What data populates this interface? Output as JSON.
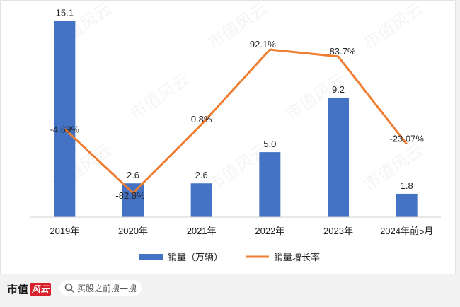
{
  "chart_data": {
    "type": "bar",
    "categories": [
      "2019年",
      "2020年",
      "2021年",
      "2022年",
      "2023年",
      "2024年前5月"
    ],
    "series": [
      {
        "name": "销量（万辆）",
        "type": "bar",
        "values": [
          15.1,
          2.6,
          2.6,
          5.0,
          9.2,
          1.8
        ],
        "labels": [
          "15.1",
          "2.6",
          "2.6",
          "5.0",
          "9.2",
          "1.8"
        ],
        "color": "#4472c4"
      },
      {
        "name": "销量增长率",
        "type": "line",
        "values": [
          -4.69,
          -82.8,
          0.8,
          92.1,
          83.7,
          -23.07
        ],
        "labels": [
          "-4.69%",
          "-82.8%",
          "0.8%",
          "92.1%",
          "83.7%",
          "-23.07%"
        ],
        "color": "#ed7d31"
      }
    ],
    "ylim": [
      0,
      16
    ],
    "y2lim": [
      -95,
      100
    ],
    "legend_position": "bottom",
    "grid": false
  },
  "watermark_text": "市值风云",
  "footer": {
    "brand_name": "市值",
    "brand_mark": "风云",
    "search_placeholder": "买股之前搜一搜"
  }
}
